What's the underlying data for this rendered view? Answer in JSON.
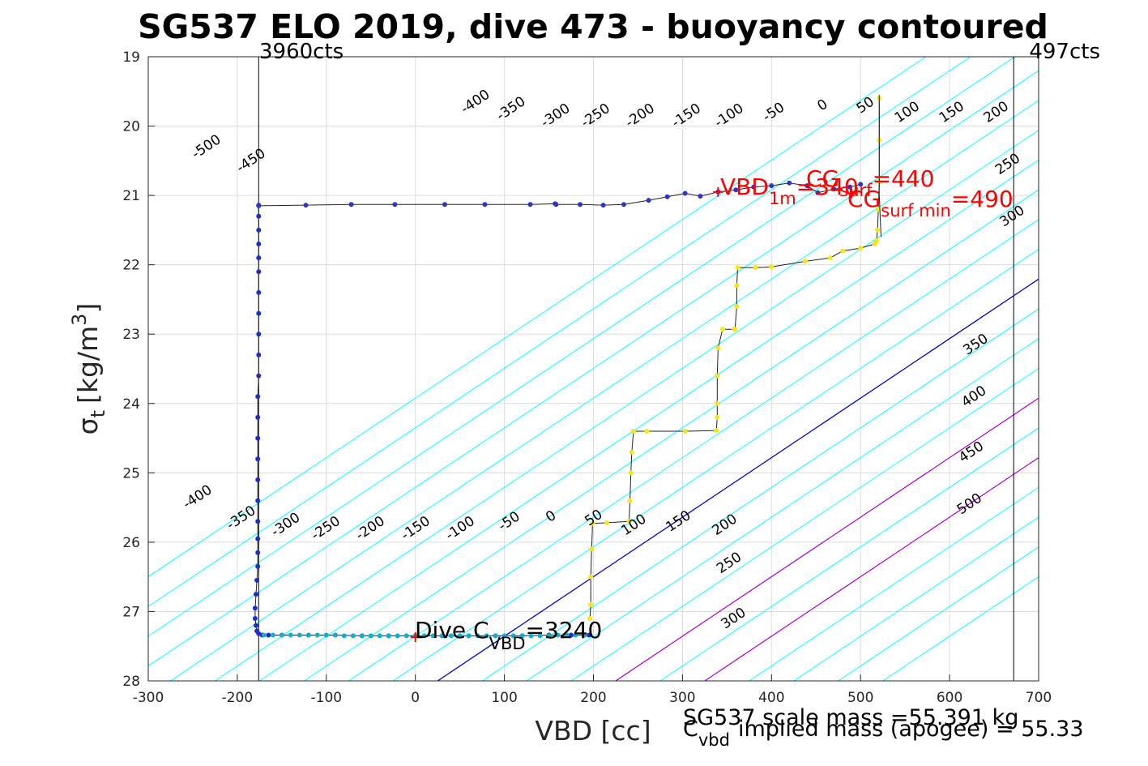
{
  "chart_data": {
    "type": "scatter",
    "title": "SG537 ELO 2019, dive 473 - buoyancy contoured",
    "xlabel": "VBD [cc]",
    "ylabel": {
      "symbol": "σ",
      "sub": "t",
      "unit": "[kg/m",
      "sup": "3",
      "close": "]"
    },
    "xlim": [
      -300,
      700
    ],
    "ylim": [
      19,
      28
    ],
    "y_reversed": true,
    "grid": true,
    "xticks": [
      -300,
      -200,
      -100,
      0,
      100,
      200,
      300,
      400,
      500,
      600,
      700
    ],
    "yticks": [
      19,
      20,
      21,
      22,
      23,
      24,
      25,
      26,
      27,
      28
    ],
    "counts_lines": [
      {
        "vbd": -176,
        "label": "3960cts"
      },
      {
        "vbd": 672,
        "label": "497cts"
      }
    ],
    "buoyancy_contours": {
      "levels": [
        -500,
        -450,
        -400,
        -350,
        -300,
        -250,
        -200,
        -150,
        -100,
        -50,
        0,
        50,
        100,
        150,
        200,
        250,
        300,
        350,
        400,
        450,
        500
      ],
      "color_default": "#00ffff",
      "color_zero": "#0000cc",
      "color_limits": "#aa00cc",
      "limit_levels": [
        200,
        300
      ],
      "base_vbd_at_sigma_28": 25,
      "dvbd_per_sigma": -116.5
    },
    "contour_labels_top": [
      {
        "level": "-500",
        "vbd": -232,
        "sigma": 20.35
      },
      {
        "level": "-450",
        "vbd": -182,
        "sigma": 20.55
      },
      {
        "level": "-400",
        "vbd": 70,
        "sigma": 19.7
      },
      {
        "level": "-350",
        "vbd": 110,
        "sigma": 19.8
      },
      {
        "level": "-300",
        "vbd": 160,
        "sigma": 19.9
      },
      {
        "level": "-250",
        "vbd": 205,
        "sigma": 19.9
      },
      {
        "level": "-200",
        "vbd": 255,
        "sigma": 19.9
      },
      {
        "level": "-150",
        "vbd": 307,
        "sigma": 19.9
      },
      {
        "level": "-100",
        "vbd": 355,
        "sigma": 19.9
      },
      {
        "level": "-50",
        "vbd": 405,
        "sigma": 19.85
      },
      {
        "level": "0",
        "vbd": 460,
        "sigma": 19.75
      },
      {
        "level": "50",
        "vbd": 508,
        "sigma": 19.75
      },
      {
        "level": "100",
        "vbd": 555,
        "sigma": 19.85
      },
      {
        "level": "150",
        "vbd": 605,
        "sigma": 19.85
      },
      {
        "level": "200",
        "vbd": 655,
        "sigma": 19.85
      },
      {
        "level": "250",
        "vbd": 668,
        "sigma": 20.6
      },
      {
        "level": "300",
        "vbd": 673,
        "sigma": 21.35
      },
      {
        "level": "350",
        "vbd": 632,
        "sigma": 23.2
      },
      {
        "level": "400",
        "vbd": 630,
        "sigma": 23.95
      },
      {
        "level": "450",
        "vbd": 627,
        "sigma": 24.75
      },
      {
        "level": "500",
        "vbd": 625,
        "sigma": 25.5
      }
    ],
    "contour_labels_bottom": [
      {
        "level": "-400",
        "vbd": -242,
        "sigma": 25.4
      },
      {
        "level": "-350",
        "vbd": -193,
        "sigma": 25.7
      },
      {
        "level": "-300",
        "vbd": -143,
        "sigma": 25.8
      },
      {
        "level": "-250",
        "vbd": -98,
        "sigma": 25.85
      },
      {
        "level": "-200",
        "vbd": -48,
        "sigma": 25.85
      },
      {
        "level": "-150",
        "vbd": 3,
        "sigma": 25.85
      },
      {
        "level": "-100",
        "vbd": 53,
        "sigma": 25.85
      },
      {
        "level": "-50",
        "vbd": 108,
        "sigma": 25.75
      },
      {
        "level": "0",
        "vbd": 155,
        "sigma": 25.68
      },
      {
        "level": "50",
        "vbd": 203,
        "sigma": 25.7
      },
      {
        "level": "100",
        "vbd": 248,
        "sigma": 25.8
      },
      {
        "level": "150",
        "vbd": 298,
        "sigma": 25.75
      },
      {
        "level": "200",
        "vbd": 350,
        "sigma": 25.8
      },
      {
        "level": "250",
        "vbd": 355,
        "sigma": 26.35
      },
      {
        "level": "300",
        "vbd": 360,
        "sigma": 27.15
      }
    ],
    "series": [
      {
        "color": "#1e2ec8",
        "mode": "lines+markers",
        "x": [
          -176,
          -176,
          -176,
          -176,
          -176,
          -176,
          -176,
          -176,
          -176,
          -176,
          -176,
          -177,
          -177,
          -177,
          -177,
          -177,
          -177,
          -177,
          -177,
          -177,
          -177,
          -178,
          -179,
          -180,
          -180,
          -179,
          -178,
          -176,
          -172,
          -165,
          -150,
          -120,
          -90,
          -60,
          -30,
          0,
          30,
          60,
          90,
          120,
          150,
          175,
          190,
          195
        ],
        "y": [
          21.14,
          21.3,
          21.5,
          21.7,
          21.9,
          22.1,
          22.4,
          22.7,
          23.0,
          23.3,
          23.6,
          23.9,
          24.2,
          24.5,
          24.8,
          25.1,
          25.4,
          25.7,
          25.95,
          26.15,
          26.35,
          26.55,
          26.75,
          26.95,
          27.1,
          27.2,
          27.28,
          27.32,
          27.34,
          27.34,
          27.34,
          27.34,
          27.34,
          27.35,
          27.35,
          27.35,
          27.35,
          27.35,
          27.35,
          27.35,
          27.34,
          27.34,
          27.34,
          27.34
        ]
      },
      {
        "color": "#2f36c4",
        "mode": "lines+markers",
        "x": [
          -176,
          -123,
          -72,
          -23,
          33,
          78,
          129,
          157,
          158,
          185,
          211,
          234,
          262,
          283,
          303,
          320,
          340,
          360,
          380,
          400,
          420,
          440,
          452,
          470,
          488,
          500
        ],
        "y": [
          21.15,
          21.14,
          21.13,
          21.13,
          21.13,
          21.13,
          21.13,
          21.12,
          21.13,
          21.13,
          21.14,
          21.13,
          21.07,
          21.02,
          20.97,
          21.01,
          20.95,
          20.92,
          20.88,
          20.86,
          20.82,
          20.86,
          20.96,
          20.91,
          20.88,
          20.84
        ]
      },
      {
        "color": "#f5e61c",
        "mode": "lines+markers",
        "x": [
          521,
          521,
          521,
          520,
          519,
          518,
          516,
          500,
          480,
          466,
          438,
          400,
          382,
          362,
          361,
          361,
          359,
          358,
          345,
          340,
          339,
          339,
          339,
          338,
          303,
          260,
          245,
          243,
          242,
          241,
          240,
          215,
          199,
          198,
          197,
          197,
          196
        ],
        "y": [
          19.6,
          20.2,
          20.8,
          21.2,
          21.5,
          21.65,
          21.7,
          21.76,
          21.8,
          21.9,
          21.95,
          22.03,
          22.04,
          22.04,
          22.3,
          22.6,
          22.93,
          22.93,
          22.93,
          23.2,
          23.6,
          24.0,
          24.2,
          24.39,
          24.4,
          24.4,
          24.4,
          24.7,
          25.0,
          25.4,
          25.7,
          25.72,
          25.73,
          26.1,
          26.5,
          26.9,
          27.1
        ]
      },
      {
        "color": "#12aed1",
        "mode": "markers",
        "x": [
          -170,
          -160,
          -150,
          -140,
          -130,
          -120,
          -110,
          -100,
          -90,
          -80,
          -70,
          -60,
          -50,
          -40,
          -30,
          -20,
          -10,
          0,
          10,
          20,
          30,
          40,
          50,
          60,
          70,
          80,
          90,
          100,
          110,
          120,
          130,
          140,
          150,
          160,
          170,
          180,
          190
        ],
        "y": [
          27.34,
          27.34,
          27.34,
          27.34,
          27.34,
          27.34,
          27.34,
          27.34,
          27.34,
          27.35,
          27.35,
          27.35,
          27.35,
          27.35,
          27.35,
          27.35,
          27.35,
          27.35,
          27.35,
          27.35,
          27.35,
          27.35,
          27.35,
          27.35,
          27.35,
          27.35,
          27.35,
          27.35,
          27.35,
          27.35,
          27.35,
          27.35,
          27.35,
          27.34,
          27.34,
          27.34,
          27.34
        ]
      }
    ],
    "surface_spike": {
      "vbd": [
        521,
        521,
        523
      ],
      "sigma": [
        19.55,
        21.0,
        21.6
      ]
    },
    "markers": [
      {
        "name": "dive-c-vbd",
        "vbd": 0,
        "sigma": 27.37
      },
      {
        "name": "vbd-1m",
        "vbd": 340,
        "sigma": 20.95
      },
      {
        "name": "vbd-surf-a",
        "vbd": 442,
        "sigma": 20.85
      },
      {
        "name": "vbd-surf-b",
        "vbd": 490,
        "sigma": 20.97
      }
    ],
    "annotations": {
      "vbd_1m": {
        "main": "VBD",
        "sub": "1m",
        "value": "=340"
      },
      "cg_surf": {
        "main": "CG",
        "sub": "surf",
        "value": "=440"
      },
      "cg_surf_min": {
        "main": "CG",
        "sub": "surf min",
        "value": "=490"
      },
      "dive_c_vbd": {
        "main": "Dive C",
        "sub": "VBD",
        "value": "=3240"
      }
    },
    "footer": {
      "scale_mass": "SG537 scale mass =55.391 kg",
      "implied_main": "C",
      "implied_sub": "vbd",
      "implied_rest": "implied mass (apogee) = 55.33"
    }
  }
}
